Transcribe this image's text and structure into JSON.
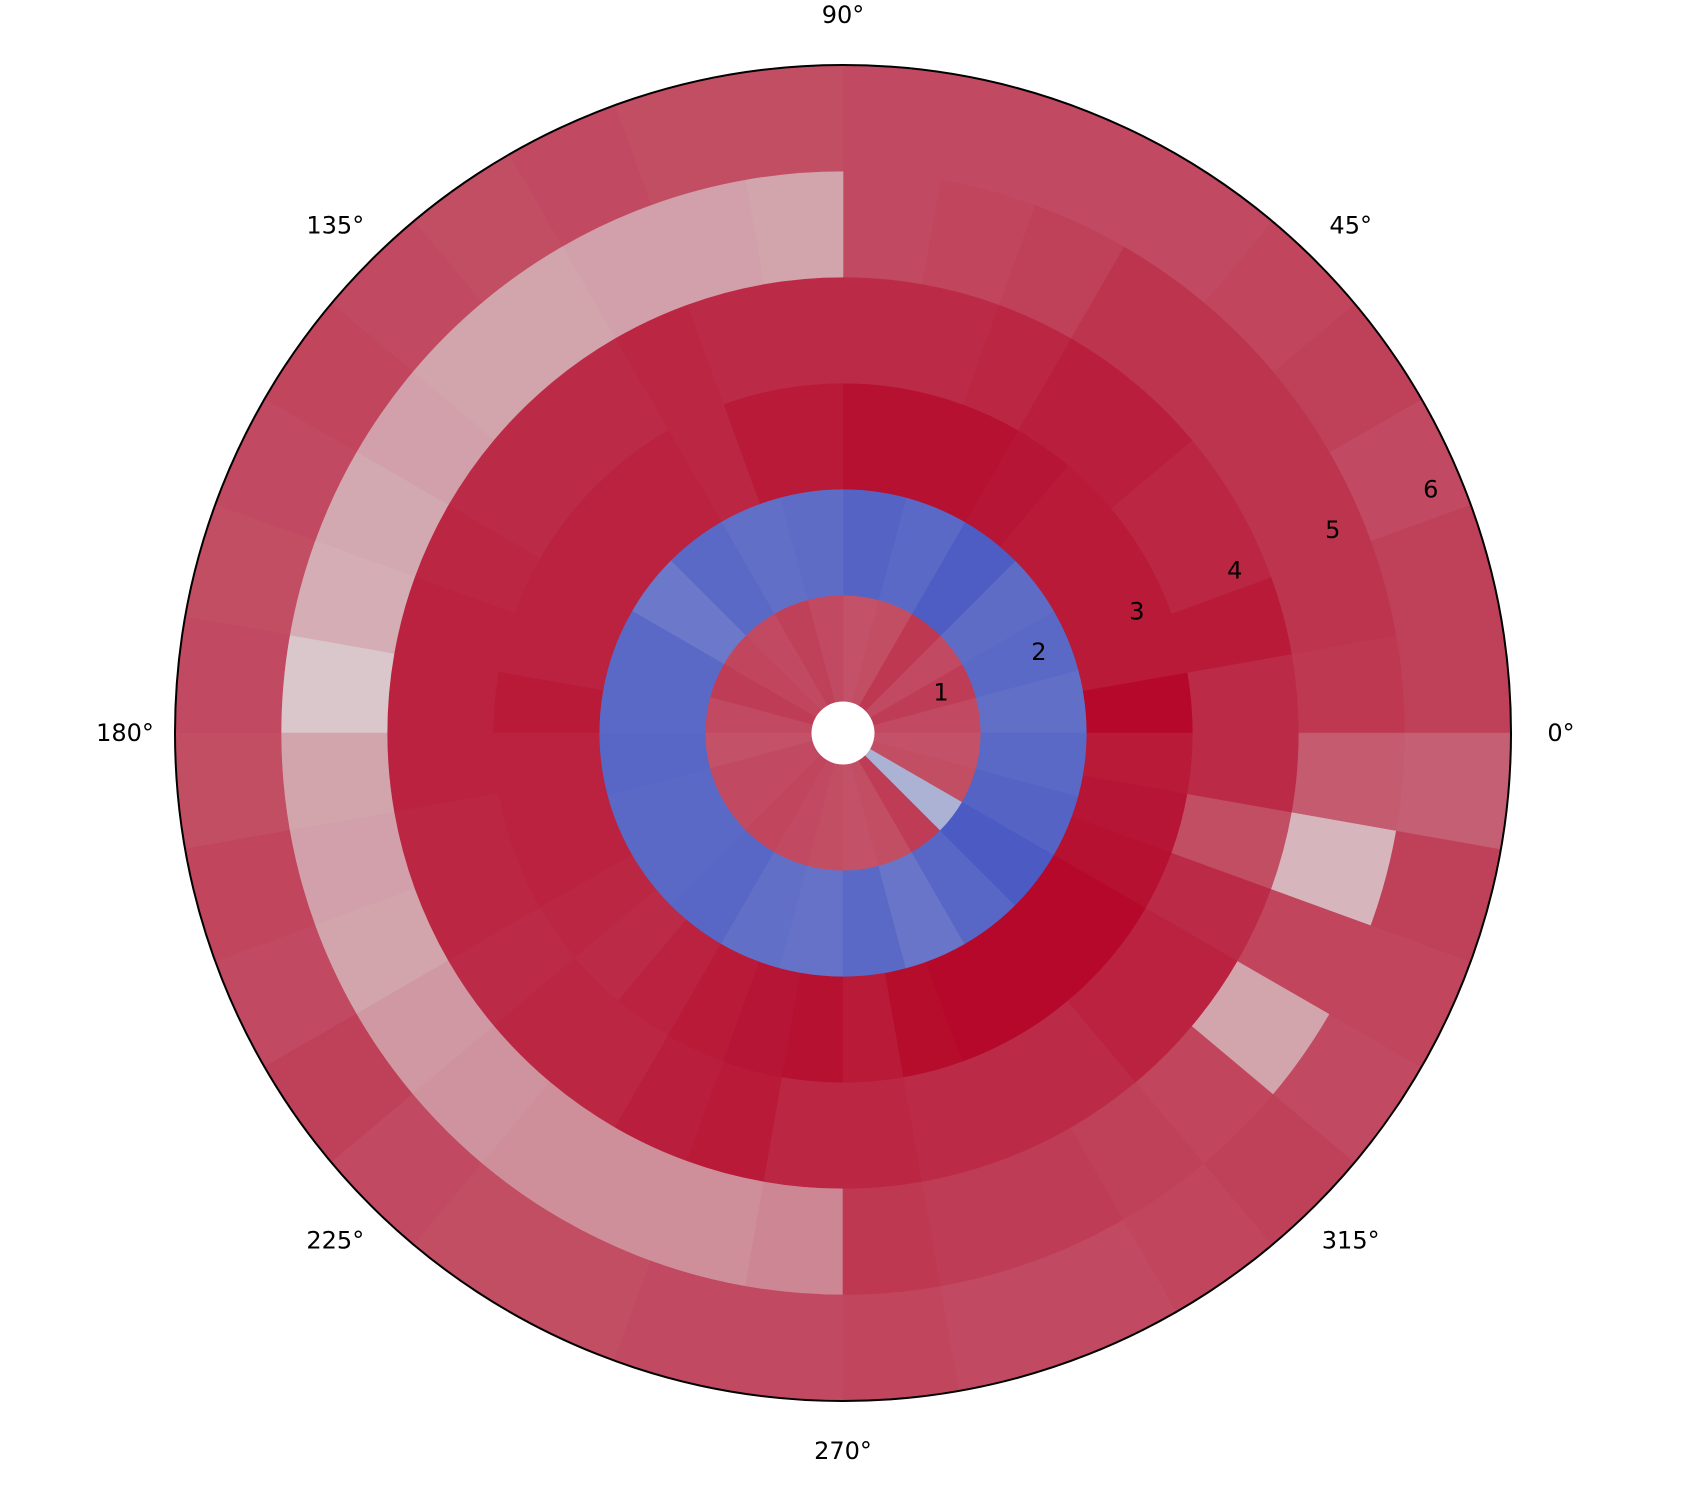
{
  "chart_data": {
    "type": "heatmap",
    "subtype": "polar",
    "title": "",
    "colormap": "coolwarm",
    "grid": false,
    "angle_ticks_deg": [
      0,
      45,
      90,
      135,
      180,
      225,
      270,
      315
    ],
    "angle_tick_labels": [
      "0°",
      "45°",
      "90°",
      "135°",
      "180°",
      "225°",
      "270°",
      "315°"
    ],
    "radius_ticks": [
      1,
      2,
      3,
      4,
      5,
      6
    ],
    "radius_tick_labels": [
      "1",
      "2",
      "3",
      "4",
      "5",
      "6"
    ],
    "rlim": [
      0,
      6.3
    ],
    "angular_bins": 36,
    "radial_edges": [
      0.3,
      1.3,
      2.3,
      3.3,
      4.3,
      5.3,
      6.3
    ],
    "rings": [
      {
        "r0": 0.3,
        "r1": 1.3,
        "bin_count": 24,
        "values": [
          0.84,
          0.87,
          0.84,
          0.88,
          0.83,
          0.82,
          0.84,
          0.86,
          0.84,
          0.85,
          0.87,
          0.84,
          0.82,
          0.84,
          0.84,
          0.85,
          0.84,
          0.83,
          0.82,
          0.83,
          0.87,
          0.35,
          0.83,
          0.82
        ]
      },
      {
        "r0": 1.3,
        "r1": 2.3,
        "bin_count": 24,
        "values": [
          0.12,
          0.1,
          0.11,
          0.06,
          0.1,
          0.08,
          0.11,
          0.12,
          0.1,
          0.15,
          0.1,
          0.1,
          0.09,
          0.1,
          0.1,
          0.09,
          0.12,
          0.13,
          0.1,
          0.14,
          0.09,
          0.05,
          0.08,
          0.1
        ]
      },
      {
        "r0": 2.3,
        "r1": 3.3,
        "bin_count": 36,
        "values": [
          0.99,
          0.95,
          0.95,
          0.95,
          0.95,
          0.96,
          0.97,
          0.97,
          0.97,
          0.95,
          0.95,
          0.92,
          0.93,
          0.93,
          0.93,
          0.93,
          0.93,
          0.95,
          0.93,
          0.93,
          0.93,
          0.92,
          0.91,
          0.93,
          0.95,
          0.96,
          0.97,
          0.95,
          0.98,
          0.99,
          0.99,
          0.99,
          0.99,
          0.97,
          0.96,
          0.95
        ]
      },
      {
        "r0": 3.3,
        "r1": 4.3,
        "bin_count": 36,
        "values": [
          0.91,
          0.95,
          0.92,
          0.92,
          0.94,
          0.94,
          0.92,
          0.91,
          0.91,
          0.91,
          0.91,
          0.92,
          0.91,
          0.91,
          0.91,
          0.92,
          0.93,
          0.93,
          0.93,
          0.92,
          0.92,
          0.91,
          0.92,
          0.92,
          0.94,
          0.95,
          0.92,
          0.92,
          0.91,
          0.91,
          0.91,
          0.93,
          0.93,
          0.91,
          0.83,
          0.91
        ]
      },
      {
        "r0": 4.3,
        "r1": 5.3,
        "bin_count": 36,
        "values": [
          0.88,
          0.89,
          0.89,
          0.89,
          0.89,
          0.89,
          0.86,
          0.85,
          0.84,
          0.63,
          0.64,
          0.64,
          0.63,
          0.63,
          0.64,
          0.62,
          0.61,
          0.55,
          0.63,
          0.64,
          0.63,
          0.66,
          0.67,
          0.68,
          0.68,
          0.68,
          0.7,
          0.88,
          0.87,
          0.87,
          0.86,
          0.85,
          0.63,
          0.85,
          0.59,
          0.8
        ]
      },
      {
        "r0": 5.3,
        "r1": 6.3,
        "bin_count": 36,
        "values": [
          0.86,
          0.86,
          0.84,
          0.86,
          0.85,
          0.84,
          0.84,
          0.84,
          0.84,
          0.83,
          0.83,
          0.84,
          0.83,
          0.84,
          0.85,
          0.84,
          0.83,
          0.84,
          0.83,
          0.85,
          0.84,
          0.86,
          0.84,
          0.83,
          0.83,
          0.84,
          0.84,
          0.85,
          0.84,
          0.84,
          0.85,
          0.86,
          0.84,
          0.85,
          0.86,
          0.79
        ]
      }
    ]
  }
}
